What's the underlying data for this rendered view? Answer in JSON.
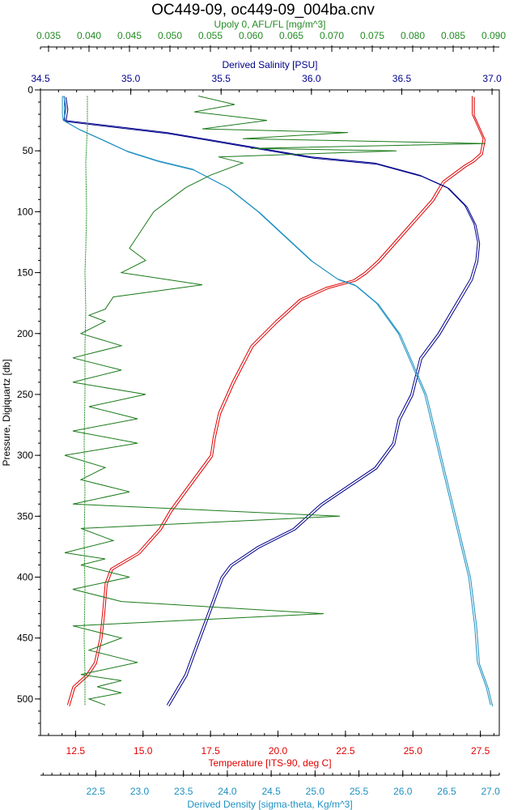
{
  "chart_data": {
    "type": "line",
    "title": "OC449-09, oc449-09_004ba.cnv",
    "y_axis": {
      "label": "Pressure, Digiquartz [db]",
      "range": [
        0,
        530
      ],
      "inverted": true,
      "ticks": [
        0,
        50,
        100,
        150,
        200,
        250,
        300,
        350,
        400,
        450,
        500
      ],
      "tick_labels": [
        "0",
        "50",
        "100",
        "150",
        "200",
        "250",
        "300",
        "350",
        "400",
        "450",
        "500"
      ]
    },
    "x_axes": {
      "fluorescence": {
        "label": "Upoly 0, AFL/FL [mg/m^3]",
        "position": "top-outer",
        "color": "#228b22",
        "range": [
          0.034,
          0.0907
        ],
        "ticks": [
          0.035,
          0.04,
          0.045,
          0.05,
          0.055,
          0.06,
          0.065,
          0.07,
          0.075,
          0.08,
          0.085,
          0.09
        ],
        "tick_labels": [
          "0.035",
          "0.040",
          "0.045",
          "0.050",
          "0.055",
          "0.060",
          "0.065",
          "0.070",
          "0.075",
          "0.080",
          "0.085",
          "0.090"
        ]
      },
      "salinity": {
        "label": "Derived Salinity [PSU]",
        "position": "top-inner",
        "color": "#00008b",
        "range": [
          34.5,
          37.04
        ],
        "ticks": [
          34.5,
          35.0,
          35.5,
          36.0,
          36.5,
          37.0
        ],
        "tick_labels": [
          "34.5",
          "35.0",
          "35.5",
          "36.0",
          "36.5",
          "37.0"
        ]
      },
      "temperature": {
        "label": "Temperature [ITS-90, deg C]",
        "position": "bottom-inner",
        "color": "#e00000",
        "range": [
          11.2,
          28.2
        ],
        "ticks": [
          12.5,
          15.0,
          17.5,
          20.0,
          22.5,
          25.0,
          27.5
        ],
        "tick_labels": [
          "12.5",
          "15.0",
          "17.5",
          "20.0",
          "22.5",
          "25.0",
          "27.5"
        ]
      },
      "density": {
        "label": "Derived Density [sigma-theta, Kg/m^3]",
        "position": "bottom-outer",
        "color": "#1e90c0",
        "range": [
          21.87,
          27.1
        ],
        "ticks": [
          22.5,
          23.0,
          23.5,
          24.0,
          24.5,
          25.0,
          25.5,
          26.0,
          26.5,
          27.0
        ],
        "tick_labels": [
          "22.5",
          "23.0",
          "23.5",
          "24.0",
          "24.5",
          "25.0",
          "25.5",
          "26.0",
          "26.5",
          "27.0"
        ]
      }
    },
    "series": [
      {
        "axis": "temperature",
        "color": "#e00000",
        "x": [
          27.2,
          27.2,
          27.4,
          27.6,
          27.5,
          27.2,
          26.9,
          26.1,
          25.7,
          25.1,
          24.3,
          23.7,
          23.2,
          22.8,
          21.8,
          20.8,
          19.9,
          19.0,
          18.3,
          17.8,
          17.6,
          17.5,
          17.0,
          16.5,
          16.0,
          15.6,
          14.8,
          13.8,
          13.6,
          13.5,
          13.4,
          13.2,
          12.9,
          12.4,
          12.2
        ],
        "y": [
          5,
          20,
          30,
          40,
          52,
          58,
          62,
          75,
          90,
          105,
          125,
          140,
          150,
          156,
          162,
          172,
          190,
          210,
          240,
          265,
          285,
          300,
          315,
          330,
          345,
          360,
          380,
          393,
          405,
          430,
          450,
          470,
          480,
          490,
          505
        ]
      },
      {
        "axis": "salinity",
        "color": "#00008b",
        "x": [
          34.63,
          34.64,
          34.63,
          35.2,
          35.6,
          36.0,
          36.35,
          36.6,
          36.75,
          36.85,
          36.9,
          36.92,
          36.91,
          36.88,
          36.8,
          36.7,
          36.6,
          36.55,
          36.48,
          36.45,
          36.35,
          36.2,
          36.05,
          35.9,
          35.7,
          35.55,
          35.5,
          35.45,
          35.35,
          35.3,
          35.2
        ],
        "y": [
          5,
          15,
          25,
          35,
          45,
          55,
          60,
          70,
          80,
          95,
          110,
          125,
          140,
          155,
          175,
          200,
          220,
          250,
          270,
          290,
          310,
          325,
          340,
          360,
          375,
          390,
          400,
          420,
          460,
          480,
          505
        ]
      },
      {
        "axis": "density",
        "color": "#1e90c0",
        "x": [
          22.12,
          22.12,
          22.13,
          22.3,
          22.55,
          22.85,
          23.2,
          23.6,
          24.0,
          24.35,
          24.65,
          24.95,
          25.25,
          25.45,
          25.7,
          25.95,
          26.1,
          26.25,
          26.35,
          26.45,
          26.55,
          26.65,
          26.75,
          26.82,
          26.85,
          26.95,
          27.0
        ],
        "y": [
          5,
          20,
          25,
          32,
          40,
          50,
          58,
          65,
          80,
          100,
          120,
          140,
          155,
          160,
          175,
          200,
          225,
          250,
          280,
          310,
          340,
          370,
          400,
          440,
          470,
          490,
          505
        ]
      },
      {
        "axis": "fluorescence",
        "color": "#1a7a1a",
        "x": [
          0.0535,
          0.058,
          0.053,
          0.062,
          0.054,
          0.072,
          0.059,
          0.089,
          0.06,
          0.078,
          0.056,
          0.059,
          0.055,
          0.052,
          0.05,
          0.048,
          0.047,
          0.046,
          0.045,
          0.047,
          0.044,
          0.054,
          0.043,
          0.042,
          0.04,
          0.042,
          0.039,
          0.044,
          0.038,
          0.044,
          0.038,
          0.047,
          0.04,
          0.046,
          0.038,
          0.046,
          0.037,
          0.042,
          0.039,
          0.045,
          0.038,
          0.071,
          0.039,
          0.043,
          0.037,
          0.042,
          0.039,
          0.045,
          0.038,
          0.044,
          0.069,
          0.038,
          0.044,
          0.04,
          0.046,
          0.039,
          0.044,
          0.041,
          0.044,
          0.04,
          0.042
        ],
        "y": [
          5,
          12,
          18,
          25,
          32,
          35,
          40,
          44,
          48,
          50,
          55,
          60,
          70,
          80,
          90,
          100,
          110,
          120,
          130,
          140,
          150,
          160,
          170,
          180,
          185,
          190,
          200,
          210,
          220,
          230,
          240,
          250,
          260,
          270,
          280,
          290,
          300,
          310,
          320,
          330,
          340,
          350,
          360,
          370,
          380,
          385,
          390,
          400,
          410,
          420,
          430,
          440,
          450,
          460,
          470,
          480,
          485,
          490,
          495,
          500,
          505
        ]
      },
      {
        "axis": "fluorescence",
        "color": "#228b22",
        "dashed": true,
        "x": [
          0.0398,
          0.0398,
          0.0396,
          0.0397,
          0.0396,
          0.0395,
          0.0396,
          0.0395,
          0.0395,
          0.0394,
          0.0395,
          0.0394,
          0.0395,
          0.0394,
          0.0395,
          0.0395
        ],
        "y": [
          5,
          30,
          60,
          100,
          130,
          150,
          180,
          210,
          250,
          290,
          330,
          370,
          410,
          450,
          480,
          505
        ]
      }
    ]
  }
}
